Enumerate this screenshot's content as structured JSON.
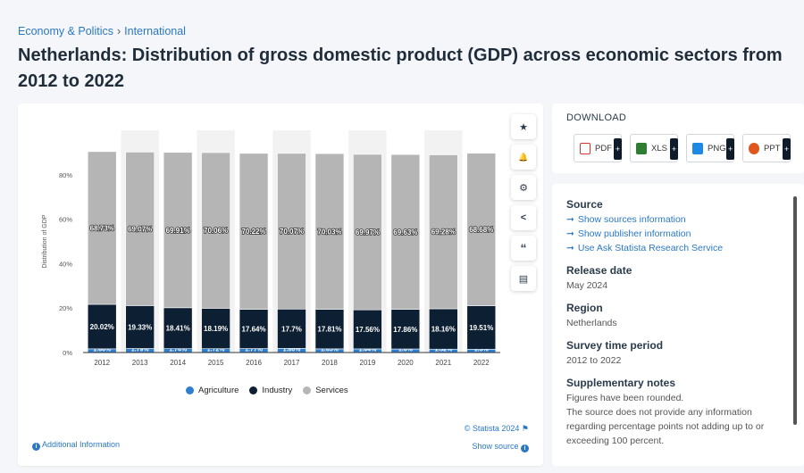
{
  "breadcrumb": {
    "item1": "Economy & Politics",
    "separator": "›",
    "item2": "International"
  },
  "title": "Netherlands: Distribution of gross domestic product (GDP) across economic sectors from 2012 to 2022",
  "toolbar": [
    {
      "name": "star-icon",
      "glyph": "★"
    },
    {
      "name": "bell-icon",
      "glyph": "🔔"
    },
    {
      "name": "gear-icon",
      "glyph": "⚙"
    },
    {
      "name": "share-icon",
      "glyph": "<"
    },
    {
      "name": "quote-icon",
      "glyph": "“"
    },
    {
      "name": "print-icon",
      "glyph": "▤"
    }
  ],
  "chart_data": {
    "type": "bar",
    "stacked": true,
    "ylabel": "Distribution of GDP",
    "ylim": [
      0,
      100
    ],
    "yticks": [
      "0%",
      "20%",
      "40%",
      "60%",
      "80%"
    ],
    "categories": [
      "2012",
      "2013",
      "2014",
      "2015",
      "2016",
      "2017",
      "2018",
      "2019",
      "2020",
      "2021",
      "2022"
    ],
    "series": [
      {
        "name": "Agriculture",
        "color": "#2f7fd1",
        "values": [
          1.66,
          1.79,
          1.74,
          1.72,
          1.77,
          1.86,
          1.65,
          1.64,
          1.6,
          1.52,
          1.5
        ],
        "labels": [
          "1.66%",
          "1.79%",
          "1.74%",
          "1.72%",
          "1.77%",
          "1.86%",
          "1.65%",
          "1.64%",
          "1.6%",
          "1.52%",
          "1.5%"
        ]
      },
      {
        "name": "Industry",
        "color": "#0d1f33",
        "values": [
          20.02,
          19.33,
          18.41,
          18.19,
          17.64,
          17.7,
          17.81,
          17.56,
          17.86,
          18.16,
          19.51
        ],
        "labels": [
          "20.02%",
          "19.33%",
          "18.41%",
          "18.19%",
          "17.64%",
          "17.7%",
          "17.81%",
          "17.56%",
          "17.86%",
          "18.16%",
          "19.51%"
        ]
      },
      {
        "name": "Services",
        "color": "#b5b5b5",
        "values": [
          68.73,
          69.07,
          69.91,
          70.06,
          70.22,
          70.07,
          70.03,
          69.97,
          69.63,
          69.28,
          68.68
        ],
        "labels": [
          "68.73%",
          "69.07%",
          "69.91%",
          "70.06%",
          "70.22%",
          "70.07%",
          "70.03%",
          "69.97%",
          "69.63%",
          "69.28%",
          "68.68%"
        ]
      }
    ],
    "grid": false,
    "legend": "bottom"
  },
  "chart_footer": {
    "credit": "© Statista 2024",
    "show_source": "Show source",
    "additional_info": "Additional Information"
  },
  "download": {
    "title": "DOWNLOAD",
    "buttons": [
      {
        "label": "PDF",
        "color": "#d9342b"
      },
      {
        "label": "XLS",
        "color": "#2e7d32"
      },
      {
        "label": "PNG",
        "color": "#1e88e5"
      },
      {
        "label": "PPT",
        "color": "#e0561f"
      }
    ],
    "plus": "+"
  },
  "source_panel": {
    "source_head": "Source",
    "links": [
      "Show sources information",
      "Show publisher information",
      "Use Ask Statista Research Service"
    ],
    "release_head": "Release date",
    "release_value": "May 2024",
    "region_head": "Region",
    "region_value": "Netherlands",
    "period_head": "Survey time period",
    "period_value": "2012 to 2022",
    "notes_head": "Supplementary notes",
    "notes_lines": [
      "Figures have been rounded.",
      "The source does not provide any information",
      "regarding percentage points not adding up to or",
      "exceeding 100 percent."
    ]
  }
}
